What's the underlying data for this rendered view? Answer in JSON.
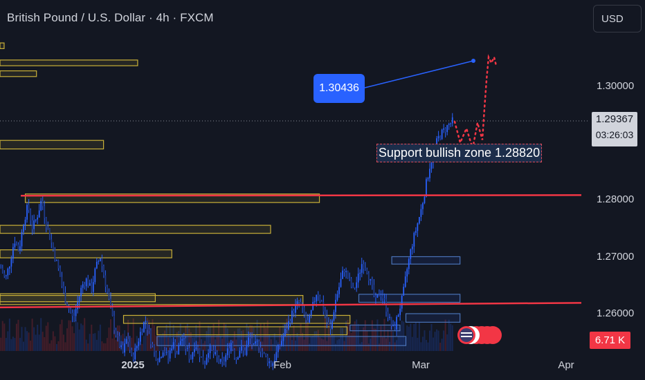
{
  "header": {
    "title": "British Pound / U.S. Dollar · 4h · FXCM",
    "currency": "USD"
  },
  "price_tag": {
    "price": "1.29367",
    "countdown": "03:26:03"
  },
  "volume_tag": "6.71 K",
  "annotations": {
    "target_label": "1.30436",
    "zone_label": "Support bullish zone 1.28820"
  },
  "colors": {
    "background": "#131722",
    "candle": "#2962ff",
    "support_line": "#f23645",
    "zone_box": "#c9b038",
    "projection": "#f23645"
  },
  "chart_data": {
    "type": "candlestick",
    "title": "British Pound / U.S. Dollar · 4h · FXCM",
    "y_ticks": [
      {
        "value": 1.3,
        "label": "1.30000"
      },
      {
        "value": 1.29,
        "label": "1.29000"
      },
      {
        "value": 1.28,
        "label": "1.28000"
      },
      {
        "value": 1.27,
        "label": "1.27000"
      },
      {
        "value": 1.26,
        "label": "1.26000"
      }
    ],
    "x_ticks": [
      {
        "label": "2025",
        "bold": true
      },
      {
        "label": "Feb",
        "bold": false
      },
      {
        "label": "Mar",
        "bold": false
      },
      {
        "label": "Apr",
        "bold": false
      }
    ],
    "ylim": [
      1.2515,
      1.3085
    ],
    "last_price": 1.29367,
    "target_price": 1.30436,
    "support_zone": 1.2882,
    "horizontal_lines": [
      {
        "name": "upper-resistance-line",
        "start": 1.2807,
        "end": 1.2808
      },
      {
        "name": "lower-support-line",
        "start": 1.2611,
        "end": 1.2619
      }
    ],
    "close_path": [
      1.268,
      1.266,
      1.269,
      1.273,
      1.271,
      1.276,
      1.279,
      1.275,
      1.277,
      1.28,
      1.276,
      1.273,
      1.27,
      1.267,
      1.263,
      1.261,
      1.259,
      1.262,
      1.265,
      1.266,
      1.264,
      1.268,
      1.27,
      1.266,
      1.262,
      1.258,
      1.255,
      1.253,
      1.256,
      1.252,
      1.254,
      1.257,
      1.259,
      1.256,
      1.253,
      1.252,
      1.254,
      1.252,
      1.255,
      1.253,
      1.256,
      1.254,
      1.252,
      1.255,
      1.253,
      1.251,
      1.254,
      1.253,
      1.252,
      1.251,
      1.253,
      1.255,
      1.252,
      1.254,
      1.253,
      1.256,
      1.254,
      1.255,
      1.253,
      1.252,
      1.251,
      1.253,
      1.255,
      1.257,
      1.259,
      1.261,
      1.262,
      1.26,
      1.258,
      1.261,
      1.264,
      1.262,
      1.259,
      1.257,
      1.262,
      1.265,
      1.268,
      1.266,
      1.264,
      1.266,
      1.269,
      1.268,
      1.265,
      1.262,
      1.264,
      1.262,
      1.259,
      1.257,
      1.26,
      1.263,
      1.268,
      1.272,
      1.275,
      1.278,
      1.282,
      1.286,
      1.289,
      1.291,
      1.292,
      1.293,
      1.2937
    ],
    "projection_path": [
      1.2937,
      1.29,
      1.2925,
      1.289,
      1.2935,
      1.2905,
      1.296,
      1.301,
      1.305,
      1.304,
      1.305,
      1.3035
    ],
    "zones": [
      {
        "start": 0.0,
        "end": 0.007,
        "low": 1.3065,
        "high": 1.3075,
        "color": "yellow"
      },
      {
        "start": 0.0,
        "end": 0.234,
        "low": 1.3035,
        "high": 1.3045,
        "color": "yellow"
      },
      {
        "start": 0.0,
        "end": 0.062,
        "low": 1.3016,
        "high": 1.3026,
        "color": "yellow"
      },
      {
        "start": 0.0,
        "end": 0.176,
        "low": 1.2889,
        "high": 1.2904,
        "color": "yellow"
      },
      {
        "start": 0.043,
        "end": 0.543,
        "low": 1.2795,
        "high": 1.281,
        "color": "yellow"
      },
      {
        "start": 0.0,
        "end": 0.46,
        "low": 1.2741,
        "high": 1.2755,
        "color": "yellow"
      },
      {
        "start": 0.0,
        "end": 0.292,
        "low": 1.2698,
        "high": 1.2712,
        "color": "yellow"
      },
      {
        "start": 0.0,
        "end": 0.264,
        "low": 1.2621,
        "high": 1.2635,
        "color": "yellow"
      },
      {
        "start": 0.0,
        "end": 0.515,
        "low": 1.2616,
        "high": 1.2632,
        "color": "yellow"
      },
      {
        "start": 0.21,
        "end": 0.595,
        "low": 1.2583,
        "high": 1.2597,
        "color": "yellow"
      },
      {
        "start": 0.267,
        "end": 0.59,
        "low": 1.2563,
        "high": 1.2577,
        "color": "yellow"
      },
      {
        "start": 0.267,
        "end": 0.69,
        "low": 1.2544,
        "high": 1.256,
        "color": "blue"
      },
      {
        "start": 0.666,
        "end": 0.782,
        "low": 1.2687,
        "high": 1.27,
        "color": "blue"
      },
      {
        "start": 0.61,
        "end": 0.782,
        "low": 1.262,
        "high": 1.2634,
        "color": "blue"
      },
      {
        "start": 0.69,
        "end": 0.782,
        "low": 1.2585,
        "high": 1.26,
        "color": "blue"
      },
      {
        "start": 0.595,
        "end": 0.68,
        "low": 1.257,
        "high": 1.258,
        "color": "blue"
      }
    ]
  }
}
